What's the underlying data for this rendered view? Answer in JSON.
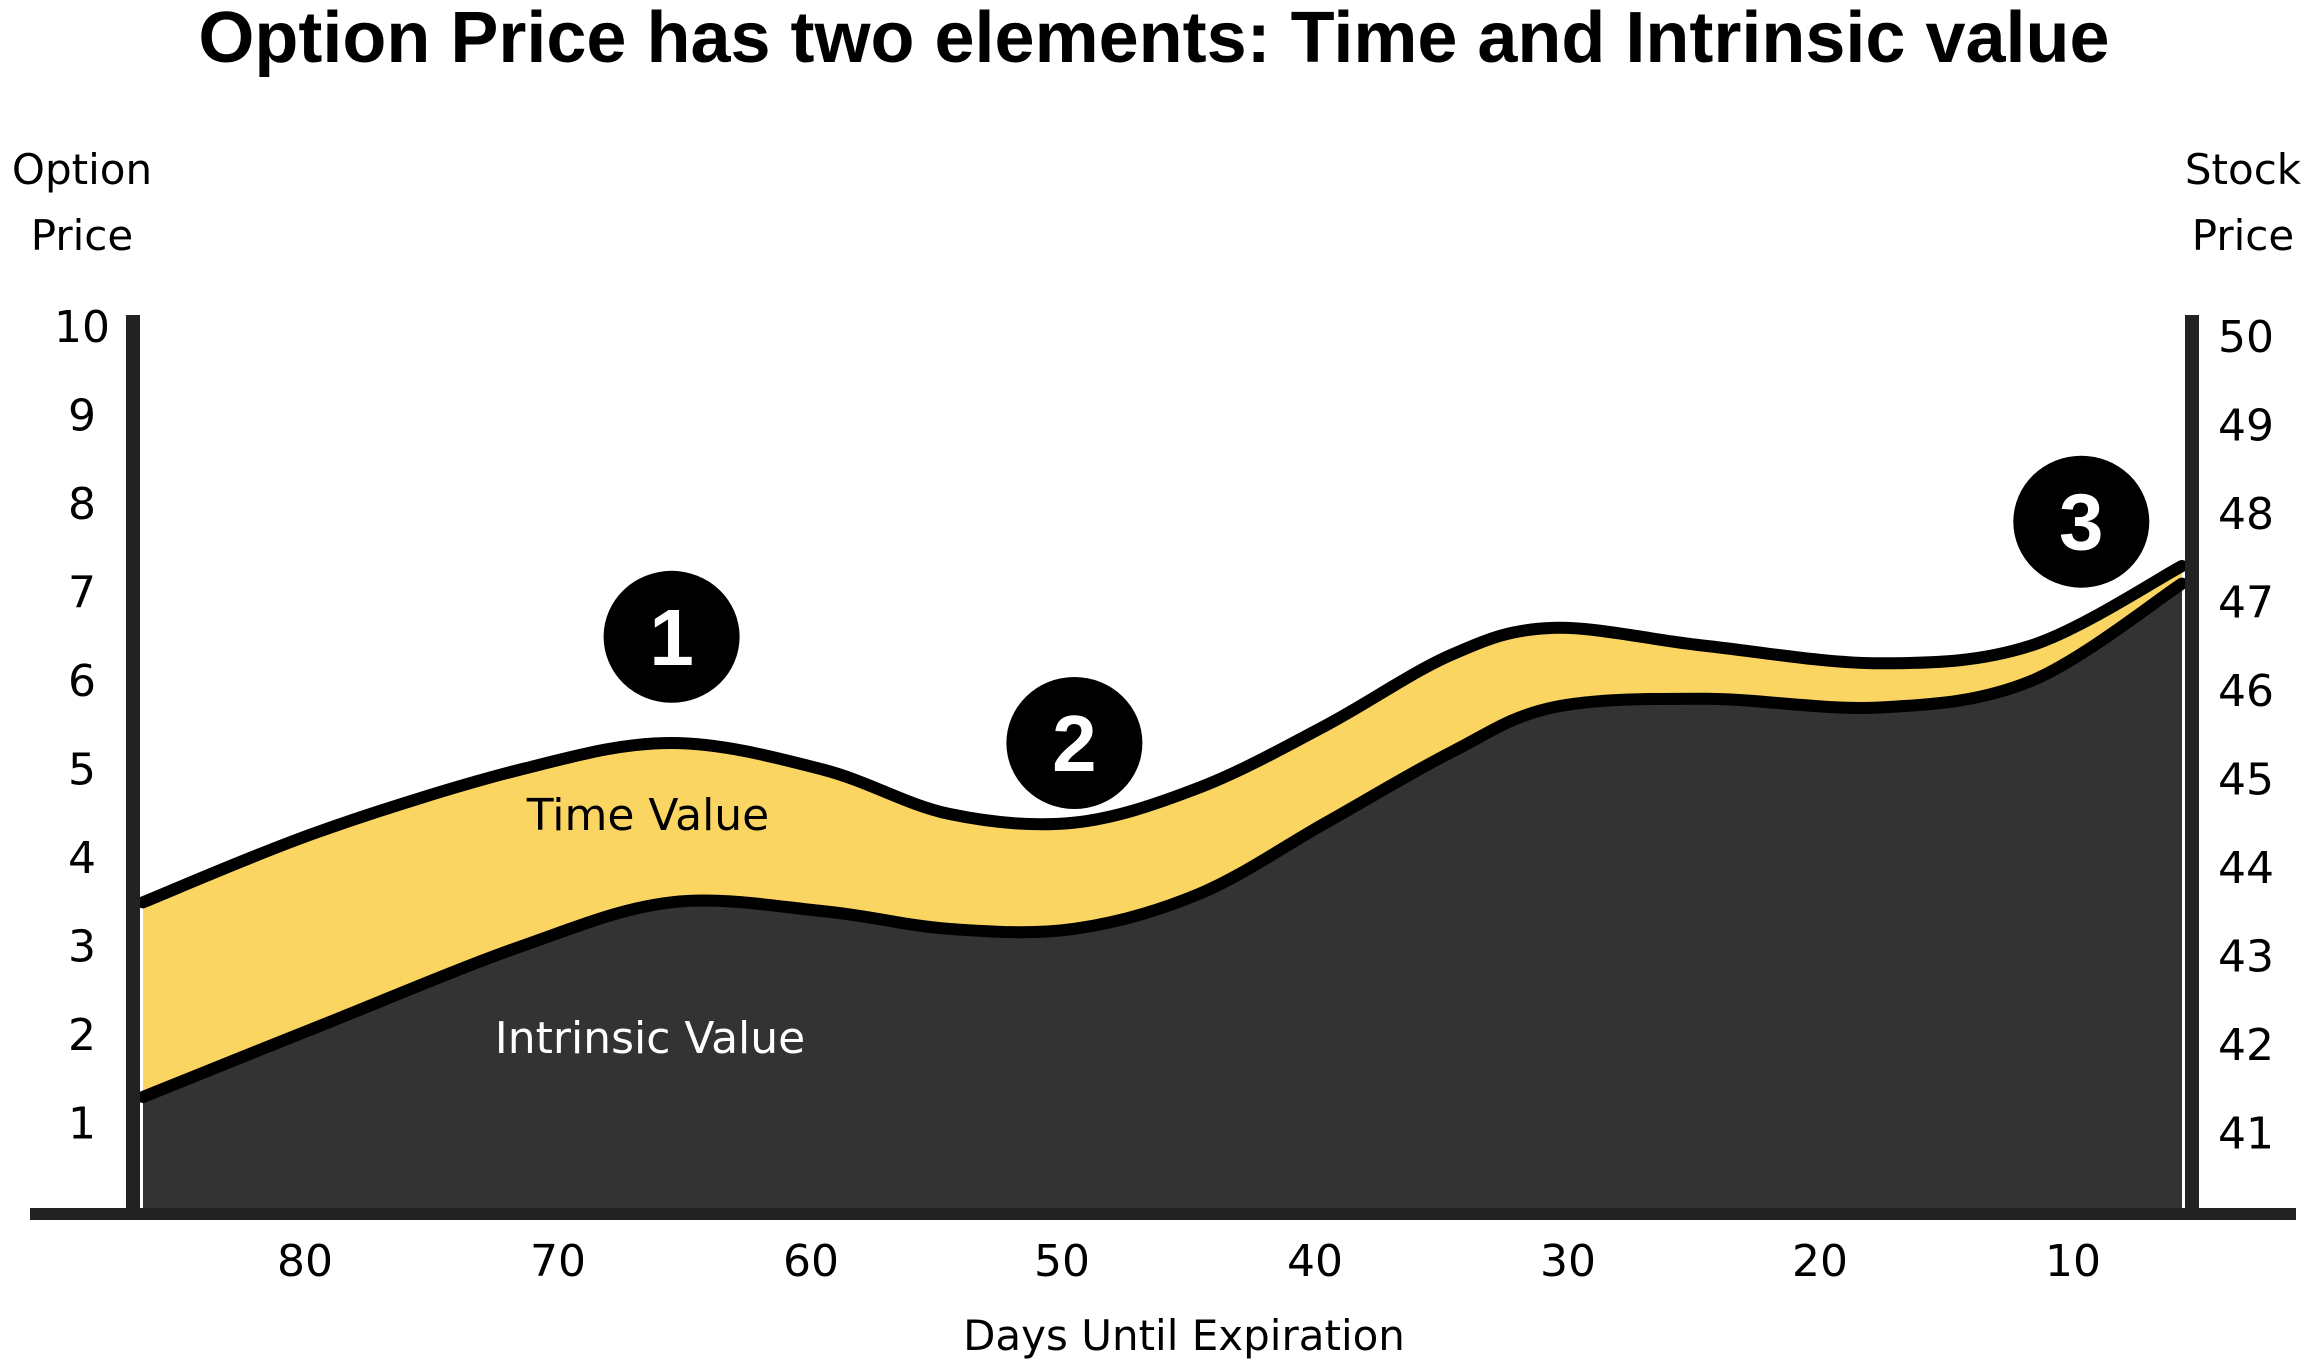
{
  "chart_data": {
    "type": "area",
    "title": "Option Price has two elements: Time and Intrinsic value",
    "y_left_label": [
      "Option",
      "Price"
    ],
    "y_right_label": [
      "Stock",
      "Price"
    ],
    "xlabel": "Days Until Expiration",
    "x_ticks": [
      "80",
      "70",
      "60",
      "50",
      "40",
      "30",
      "20",
      "10"
    ],
    "y_left_ticks": [
      "1",
      "2",
      "3",
      "4",
      "5",
      "6",
      "7",
      "8",
      "9",
      "10"
    ],
    "y_right_ticks": [
      "41",
      "42",
      "43",
      "44",
      "45",
      "46",
      "47",
      "48",
      "49",
      "50"
    ],
    "ylim": [
      0,
      10
    ],
    "xlim": [
      87,
      6
    ],
    "series": [
      {
        "name": "Time Value",
        "color": "#fbd561",
        "x": [
          87,
          80,
          72,
          66,
          60,
          55,
          50,
          45,
          40,
          35,
          31,
          25,
          18,
          12,
          6
        ],
        "values": [
          3.5,
          4.3,
          5.0,
          5.3,
          5.0,
          4.5,
          4.4,
          4.8,
          5.5,
          6.3,
          6.6,
          6.4,
          6.2,
          6.4,
          7.3
        ]
      },
      {
        "name": "Intrinsic Value",
        "color": "#333333",
        "x": [
          87,
          80,
          72,
          66,
          60,
          55,
          50,
          45,
          40,
          35,
          31,
          25,
          18,
          12,
          6
        ],
        "values": [
          1.3,
          2.1,
          3.0,
          3.5,
          3.4,
          3.2,
          3.2,
          3.6,
          4.4,
          5.2,
          5.7,
          5.8,
          5.7,
          6.0,
          7.1
        ]
      }
    ],
    "annotations": [
      {
        "label": "1",
        "x": 66,
        "y": 6.5
      },
      {
        "label": "2",
        "x": 50,
        "y": 5.3
      },
      {
        "label": "3",
        "x": 10,
        "y": 7.8
      }
    ],
    "area_labels": {
      "time": "Time Value",
      "intrinsic": "Intrinsic Value"
    },
    "colors": {
      "time": "#fbd561",
      "intrinsic": "#333333",
      "axis": "#222222",
      "outline": "#000000"
    }
  }
}
